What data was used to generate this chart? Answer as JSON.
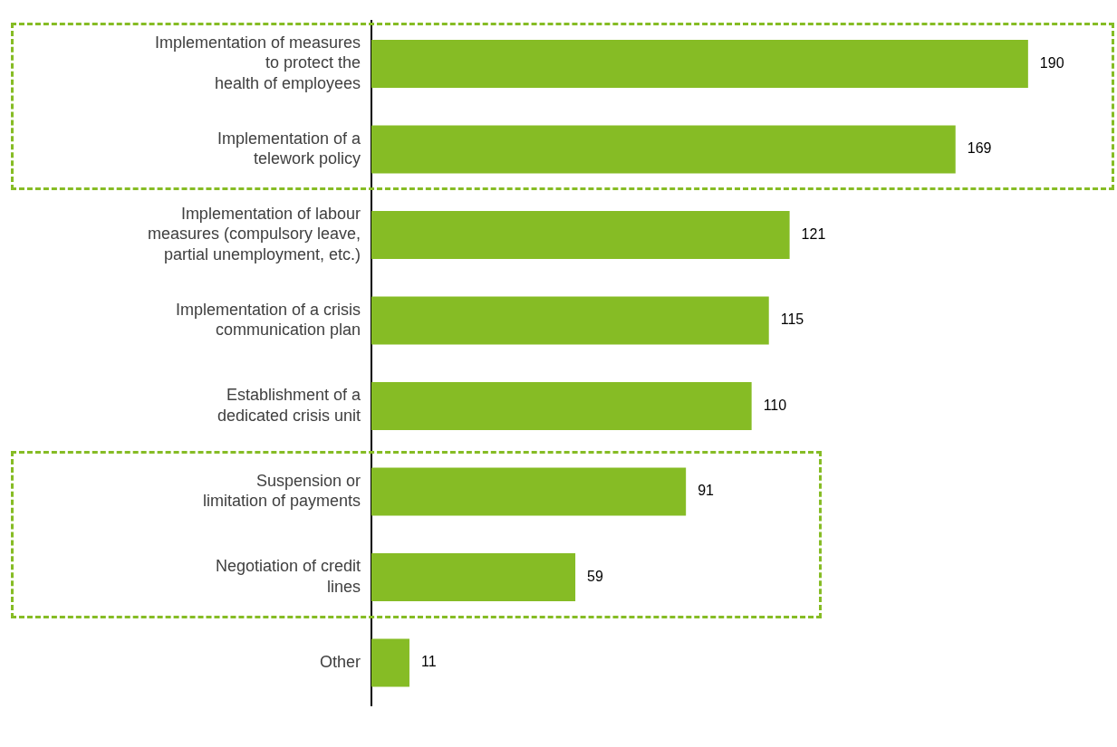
{
  "chart_data": {
    "type": "bar",
    "orientation": "horizontal",
    "categories": [
      "Implementation of measures\nto protect the\nhealth of employees",
      "Implementation of a\ntelework policy",
      "Implementation of labour\nmeasures (compulsory leave,\npartial unemployment, etc.)",
      "Implementation of a crisis\ncommunication plan",
      "Establishment of a\ndedicated crisis unit",
      "Suspension or\nlimitation of payments",
      "Negotiation of credit\nlines",
      "Other"
    ],
    "values": [
      190,
      169,
      121,
      115,
      110,
      91,
      59,
      11
    ],
    "color": "#86bc25",
    "data_labels": true
  }
}
